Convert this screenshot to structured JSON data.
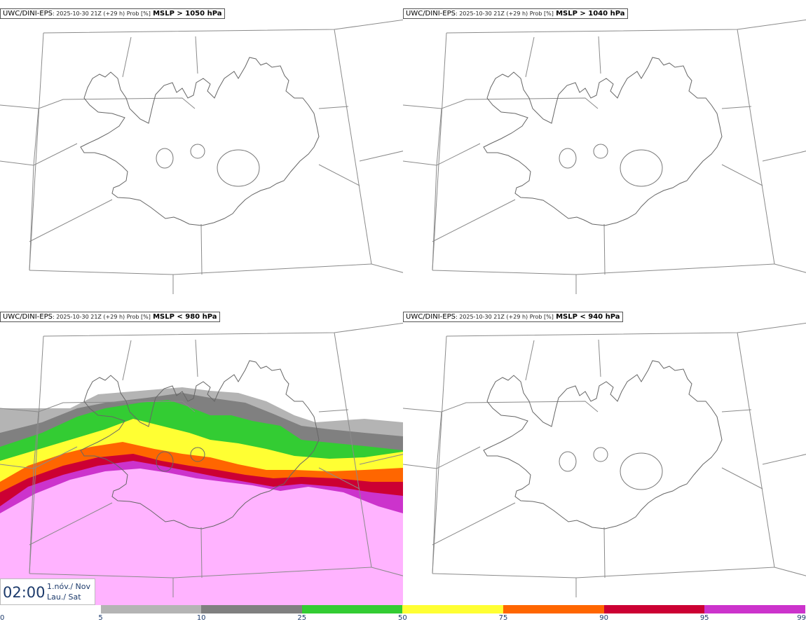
{
  "panels": [
    {
      "model": "UWC/DINI-EPS",
      "meta": ": 2025-10-30 21Z (+29 h) Prob [%]",
      "field": "MSLP > 1050 hPa",
      "has_fill": false
    },
    {
      "model": "UWC/DINI-EPS",
      "meta": ": 2025-10-30 21Z (+29 h) Prob [%]",
      "field": "MSLP > 1040 hPa",
      "has_fill": false
    },
    {
      "model": "UWC/DINI-EPS",
      "meta": ": 2025-10-30 21Z (+29 h) Prob [%]",
      "field": "MSLP < 980 hPa",
      "has_fill": true
    },
    {
      "model": "UWC/DINI-EPS",
      "meta": ": 2025-10-30 21Z (+29 h) Prob [%]",
      "field": "MSLP < 940 hPa",
      "has_fill": false
    }
  ],
  "valid_time": {
    "clock": "02:00",
    "date_is_en": "1.nóv./ Nov",
    "day_is_en": "Lau./ Sat"
  },
  "colorbar": {
    "ticks": [
      "0",
      "5",
      "10",
      "25",
      "50",
      "75",
      "90",
      "95",
      "99"
    ],
    "colors": [
      "#ffffff",
      "#b4b4b4",
      "#808080",
      "#33cc33",
      "#ffff33",
      "#ff6600",
      "#cc0033",
      "#cc33cc",
      "#ffb3ff"
    ]
  }
}
